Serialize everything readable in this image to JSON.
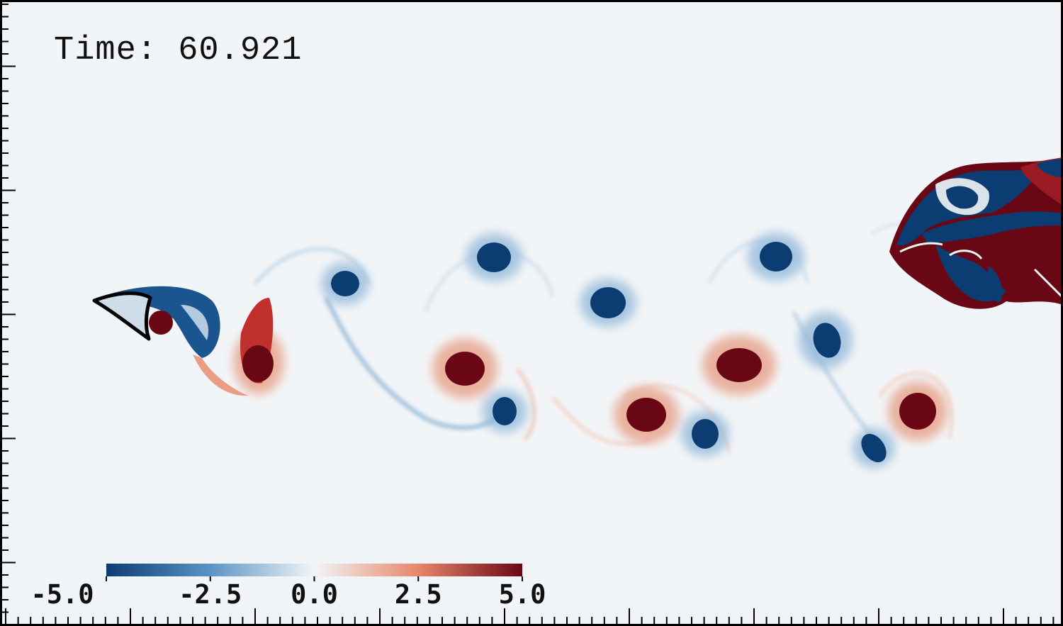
{
  "time_label": "Time: 60.921",
  "colorbar": {
    "min": -5.0,
    "max": 5.0,
    "tick_labels": [
      "-5.0",
      "-2.5",
      "0.0",
      "2.5",
      "5.0"
    ],
    "tick_values": [
      -5.0,
      -2.5,
      0.0,
      2.5,
      5.0
    ],
    "colors": {
      "negative_strong": "#0b3d73",
      "negative_mid": "#5a94c4",
      "neutral": "#f2f5f7",
      "positive_mid": "#e8866a",
      "positive_strong": "#6a0714"
    }
  },
  "colors": {
    "background": "#f2f5f7",
    "frame": "#000000",
    "body_outline": "#000000"
  }
}
